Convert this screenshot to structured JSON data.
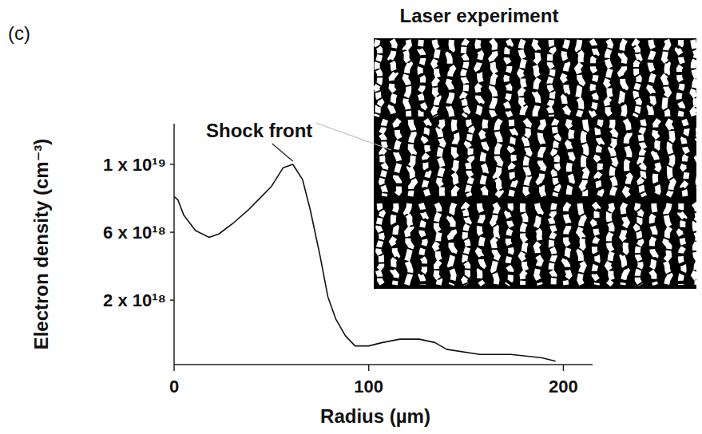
{
  "chart_data": {
    "type": "line",
    "panel": "(c)",
    "title": "Laser experiment",
    "annotation": "Shock front",
    "x_label": "Radius (µm)",
    "y_label": "Electron density (cm⁻³)",
    "x": [
      0,
      2,
      5,
      11,
      18,
      23,
      30,
      38,
      44,
      50,
      56,
      61,
      66,
      70,
      75,
      79,
      83,
      88,
      93,
      100,
      107,
      116,
      126,
      134,
      140,
      157,
      173,
      189,
      196
    ],
    "values": [
      8.1e+18,
      7.9e+18,
      7e+18,
      6.1e+18,
      5.7e+18,
      5.9e+18,
      6.5e+18,
      7.3e+18,
      8e+18,
      8.7e+18,
      9.8e+18,
      1e+19,
      9.1e+18,
      7.3e+18,
      4.6e+18,
      2.2e+18,
      9e+17,
      -1e+17,
      -7e+17,
      -7e+17,
      -5e+17,
      -3e+17,
      -3e+17,
      -5e+17,
      -9e+17,
      -1.2e+18,
      -1.2e+18,
      -1.4e+18,
      -1.6e+18
    ],
    "color": "#111111",
    "line_style": "solid",
    "xlim": [
      0,
      215
    ],
    "ylim": [
      -1.8e+18,
      1.24e+19
    ],
    "xticks": [
      0,
      100,
      200
    ],
    "yticks": [
      {
        "value": 2e+18,
        "label": "2 x 10¹⁸"
      },
      {
        "value": 6e+18,
        "label": "6 x 10¹⁸"
      },
      {
        "value": 1e+19,
        "label": "1 x 10¹⁹"
      }
    ],
    "grid": false
  }
}
